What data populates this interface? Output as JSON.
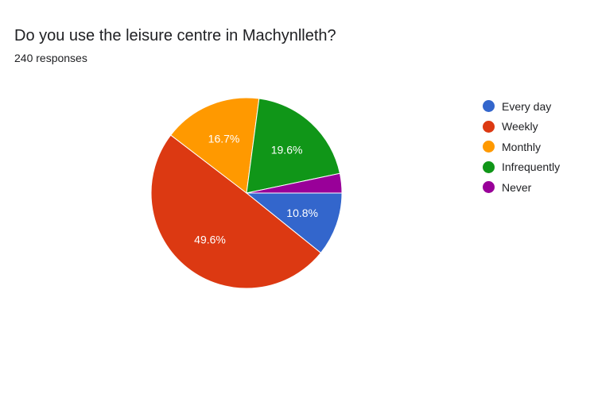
{
  "chart_data": {
    "type": "pie",
    "title": "Do you use the leisure centre in Machynlleth?",
    "subtitle": "240 responses",
    "legend_position": "right",
    "start_angle_deg": 90,
    "direction": "clockwise",
    "slices": [
      {
        "label": "Every day",
        "value": 10.8,
        "value_label": "10.8%",
        "color": "#3366cc"
      },
      {
        "label": "Weekly",
        "value": 49.6,
        "value_label": "49.6%",
        "color": "#dc3912"
      },
      {
        "label": "Monthly",
        "value": 16.7,
        "value_label": "16.7%",
        "color": "#ff9900"
      },
      {
        "label": "Infrequently",
        "value": 19.6,
        "value_label": "19.6%",
        "color": "#109618"
      },
      {
        "label": "Never",
        "value": 3.3,
        "value_label": "",
        "color": "#990099"
      }
    ]
  }
}
